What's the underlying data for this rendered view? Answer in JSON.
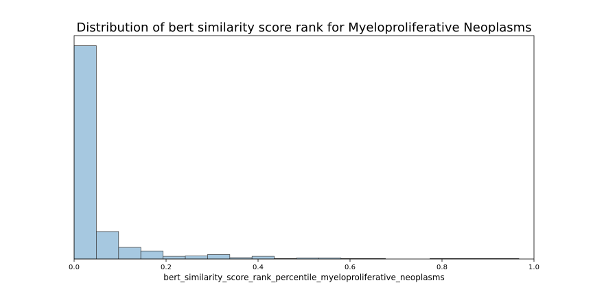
{
  "chart_data": {
    "type": "bar",
    "subtype": "histogram",
    "title": "Distribution of bert similarity score rank for Myeloproliferative Neoplasms",
    "xlabel": "bert_similarity_score_rank_percentile_myeloproliferative_neoplasms",
    "ylabel": "",
    "xlim": [
      0.0,
      1.0
    ],
    "ylim": [
      0,
      100
    ],
    "x_ticks": [
      "0.0",
      "0.2",
      "0.4",
      "0.6",
      "0.8",
      "1.0"
    ],
    "y_ticks_visible": false,
    "bins": [
      {
        "start": 0.0,
        "end": 0.04836,
        "value": 95.5
      },
      {
        "start": 0.04836,
        "end": 0.09672,
        "value": 12.3
      },
      {
        "start": 0.09672,
        "end": 0.14508,
        "value": 5.2
      },
      {
        "start": 0.14508,
        "end": 0.19344,
        "value": 3.6
      },
      {
        "start": 0.19344,
        "end": 0.2418,
        "value": 1.2
      },
      {
        "start": 0.2418,
        "end": 0.29016,
        "value": 1.4
      },
      {
        "start": 0.29016,
        "end": 0.33852,
        "value": 2.0
      },
      {
        "start": 0.33852,
        "end": 0.38688,
        "value": 0.6
      },
      {
        "start": 0.38688,
        "end": 0.43524,
        "value": 1.2
      },
      {
        "start": 0.43524,
        "end": 0.4836,
        "value": 0.2
      },
      {
        "start": 0.4836,
        "end": 0.53196,
        "value": 0.5
      },
      {
        "start": 0.53196,
        "end": 0.58032,
        "value": 0.5
      },
      {
        "start": 0.58032,
        "end": 0.62868,
        "value": 0.2
      },
      {
        "start": 0.62868,
        "end": 0.67704,
        "value": 0.2
      },
      {
        "start": 0.67704,
        "end": 0.7254,
        "value": 0.0
      },
      {
        "start": 0.7254,
        "end": 0.77376,
        "value": 0.0
      },
      {
        "start": 0.77376,
        "end": 0.82212,
        "value": 0.2
      },
      {
        "start": 0.82212,
        "end": 0.87048,
        "value": 0.2
      },
      {
        "start": 0.87048,
        "end": 0.91884,
        "value": 0.2
      },
      {
        "start": 0.91884,
        "end": 0.9672,
        "value": 0.2
      }
    ],
    "colors": {
      "bar_fill": "#a6c8e0",
      "bar_edge": "#3a3a3a",
      "axes": "#000000",
      "background": "#ffffff"
    },
    "grid": false,
    "legend": "none"
  }
}
